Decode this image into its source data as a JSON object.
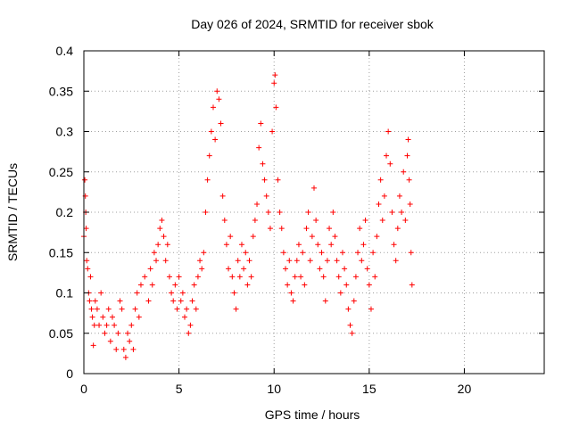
{
  "chart_data": {
    "type": "scatter",
    "title": "Day 026 of 2024, SRMTID for receiver sbok",
    "xlabel": "GPS time / hours",
    "ylabel": "SRMTID / TECUs",
    "xlim": [
      0,
      24.2
    ],
    "ylim": [
      0,
      0.4
    ],
    "xticks": [
      0,
      5,
      10,
      15,
      20
    ],
    "xtick_labels": [
      "0",
      "5",
      "10",
      "15",
      "20"
    ],
    "yticks": [
      0,
      0.05,
      0.1,
      0.15,
      0.2,
      0.25,
      0.3,
      0.35,
      0.4
    ],
    "ytick_labels": [
      "0",
      "0.05",
      "0.1",
      "0.15",
      "0.2",
      "0.25",
      "0.3",
      "0.35",
      "0.4"
    ],
    "grid": true,
    "marker": "+",
    "color": "#ff0000",
    "series": [
      {
        "name": "sbok",
        "points": [
          [
            0.0,
            0.17
          ],
          [
            0.05,
            0.24
          ],
          [
            0.08,
            0.22
          ],
          [
            0.1,
            0.2
          ],
          [
            0.12,
            0.18
          ],
          [
            0.15,
            0.14
          ],
          [
            0.2,
            0.13
          ],
          [
            0.25,
            0.1
          ],
          [
            0.3,
            0.09
          ],
          [
            0.35,
            0.12
          ],
          [
            0.4,
            0.08
          ],
          [
            0.45,
            0.07
          ],
          [
            0.5,
            0.035
          ],
          [
            0.55,
            0.06
          ],
          [
            0.6,
            0.09
          ],
          [
            0.7,
            0.08
          ],
          [
            0.8,
            0.06
          ],
          [
            0.9,
            0.1
          ],
          [
            1.0,
            0.07
          ],
          [
            1.1,
            0.05
          ],
          [
            1.2,
            0.06
          ],
          [
            1.3,
            0.08
          ],
          [
            1.4,
            0.04
          ],
          [
            1.5,
            0.07
          ],
          [
            1.6,
            0.06
          ],
          [
            1.7,
            0.03
          ],
          [
            1.8,
            0.05
          ],
          [
            1.9,
            0.09
          ],
          [
            2.0,
            0.08
          ],
          [
            2.1,
            0.03
          ],
          [
            2.2,
            0.02
          ],
          [
            2.3,
            0.05
          ],
          [
            2.4,
            0.04
          ],
          [
            2.5,
            0.06
          ],
          [
            2.6,
            0.03
          ],
          [
            2.7,
            0.08
          ],
          [
            2.8,
            0.1
          ],
          [
            2.9,
            0.07
          ],
          [
            3.0,
            0.11
          ],
          [
            3.2,
            0.12
          ],
          [
            3.4,
            0.09
          ],
          [
            3.5,
            0.13
          ],
          [
            3.6,
            0.11
          ],
          [
            3.7,
            0.15
          ],
          [
            3.8,
            0.14
          ],
          [
            3.9,
            0.16
          ],
          [
            4.0,
            0.18
          ],
          [
            4.1,
            0.19
          ],
          [
            4.2,
            0.17
          ],
          [
            4.3,
            0.14
          ],
          [
            4.4,
            0.16
          ],
          [
            4.5,
            0.12
          ],
          [
            4.6,
            0.1
          ],
          [
            4.7,
            0.09
          ],
          [
            4.8,
            0.11
          ],
          [
            4.9,
            0.08
          ],
          [
            5.0,
            0.12
          ],
          [
            5.1,
            0.09
          ],
          [
            5.2,
            0.1
          ],
          [
            5.3,
            0.07
          ],
          [
            5.4,
            0.08
          ],
          [
            5.5,
            0.05
          ],
          [
            5.6,
            0.06
          ],
          [
            5.7,
            0.09
          ],
          [
            5.8,
            0.11
          ],
          [
            5.9,
            0.08
          ],
          [
            6.0,
            0.12
          ],
          [
            6.1,
            0.14
          ],
          [
            6.2,
            0.13
          ],
          [
            6.3,
            0.15
          ],
          [
            6.4,
            0.2
          ],
          [
            6.5,
            0.24
          ],
          [
            6.6,
            0.27
          ],
          [
            6.7,
            0.3
          ],
          [
            6.8,
            0.33
          ],
          [
            6.9,
            0.29
          ],
          [
            7.0,
            0.35
          ],
          [
            7.1,
            0.34
          ],
          [
            7.2,
            0.31
          ],
          [
            7.3,
            0.22
          ],
          [
            7.4,
            0.19
          ],
          [
            7.5,
            0.16
          ],
          [
            7.6,
            0.13
          ],
          [
            7.7,
            0.17
          ],
          [
            7.8,
            0.12
          ],
          [
            7.9,
            0.1
          ],
          [
            8.0,
            0.08
          ],
          [
            8.1,
            0.14
          ],
          [
            8.2,
            0.12
          ],
          [
            8.3,
            0.16
          ],
          [
            8.4,
            0.13
          ],
          [
            8.5,
            0.15
          ],
          [
            8.6,
            0.11
          ],
          [
            8.7,
            0.14
          ],
          [
            8.8,
            0.12
          ],
          [
            8.9,
            0.17
          ],
          [
            9.0,
            0.19
          ],
          [
            9.1,
            0.21
          ],
          [
            9.2,
            0.28
          ],
          [
            9.3,
            0.31
          ],
          [
            9.4,
            0.26
          ],
          [
            9.5,
            0.24
          ],
          [
            9.6,
            0.22
          ],
          [
            9.7,
            0.2
          ],
          [
            9.8,
            0.18
          ],
          [
            9.9,
            0.3
          ],
          [
            10.0,
            0.36
          ],
          [
            10.05,
            0.37
          ],
          [
            10.1,
            0.33
          ],
          [
            10.2,
            0.24
          ],
          [
            10.3,
            0.2
          ],
          [
            10.4,
            0.18
          ],
          [
            10.5,
            0.15
          ],
          [
            10.6,
            0.13
          ],
          [
            10.7,
            0.11
          ],
          [
            10.8,
            0.14
          ],
          [
            10.9,
            0.1
          ],
          [
            11.0,
            0.09
          ],
          [
            11.1,
            0.12
          ],
          [
            11.2,
            0.14
          ],
          [
            11.3,
            0.16
          ],
          [
            11.4,
            0.12
          ],
          [
            11.5,
            0.15
          ],
          [
            11.6,
            0.11
          ],
          [
            11.7,
            0.18
          ],
          [
            11.8,
            0.2
          ],
          [
            11.9,
            0.14
          ],
          [
            12.0,
            0.17
          ],
          [
            12.1,
            0.23
          ],
          [
            12.2,
            0.19
          ],
          [
            12.3,
            0.16
          ],
          [
            12.4,
            0.13
          ],
          [
            12.5,
            0.15
          ],
          [
            12.6,
            0.12
          ],
          [
            12.7,
            0.09
          ],
          [
            12.8,
            0.14
          ],
          [
            12.9,
            0.18
          ],
          [
            13.0,
            0.16
          ],
          [
            13.1,
            0.2
          ],
          [
            13.2,
            0.17
          ],
          [
            13.3,
            0.14
          ],
          [
            13.4,
            0.12
          ],
          [
            13.5,
            0.1
          ],
          [
            13.6,
            0.15
          ],
          [
            13.7,
            0.13
          ],
          [
            13.8,
            0.11
          ],
          [
            13.9,
            0.08
          ],
          [
            14.0,
            0.06
          ],
          [
            14.1,
            0.05
          ],
          [
            14.2,
            0.09
          ],
          [
            14.3,
            0.12
          ],
          [
            14.4,
            0.15
          ],
          [
            14.5,
            0.18
          ],
          [
            14.6,
            0.14
          ],
          [
            14.7,
            0.16
          ],
          [
            14.8,
            0.19
          ],
          [
            14.9,
            0.13
          ],
          [
            15.0,
            0.11
          ],
          [
            15.1,
            0.08
          ],
          [
            15.2,
            0.15
          ],
          [
            15.3,
            0.12
          ],
          [
            15.4,
            0.17
          ],
          [
            15.5,
            0.21
          ],
          [
            15.6,
            0.24
          ],
          [
            15.7,
            0.19
          ],
          [
            15.8,
            0.22
          ],
          [
            15.9,
            0.27
          ],
          [
            16.0,
            0.3
          ],
          [
            16.1,
            0.26
          ],
          [
            16.2,
            0.2
          ],
          [
            16.3,
            0.16
          ],
          [
            16.4,
            0.14
          ],
          [
            16.5,
            0.18
          ],
          [
            16.6,
            0.22
          ],
          [
            16.7,
            0.2
          ],
          [
            16.8,
            0.25
          ],
          [
            16.9,
            0.19
          ],
          [
            17.0,
            0.27
          ],
          [
            17.05,
            0.29
          ],
          [
            17.1,
            0.24
          ],
          [
            17.15,
            0.21
          ],
          [
            17.2,
            0.15
          ],
          [
            17.25,
            0.11
          ]
        ]
      }
    ]
  }
}
